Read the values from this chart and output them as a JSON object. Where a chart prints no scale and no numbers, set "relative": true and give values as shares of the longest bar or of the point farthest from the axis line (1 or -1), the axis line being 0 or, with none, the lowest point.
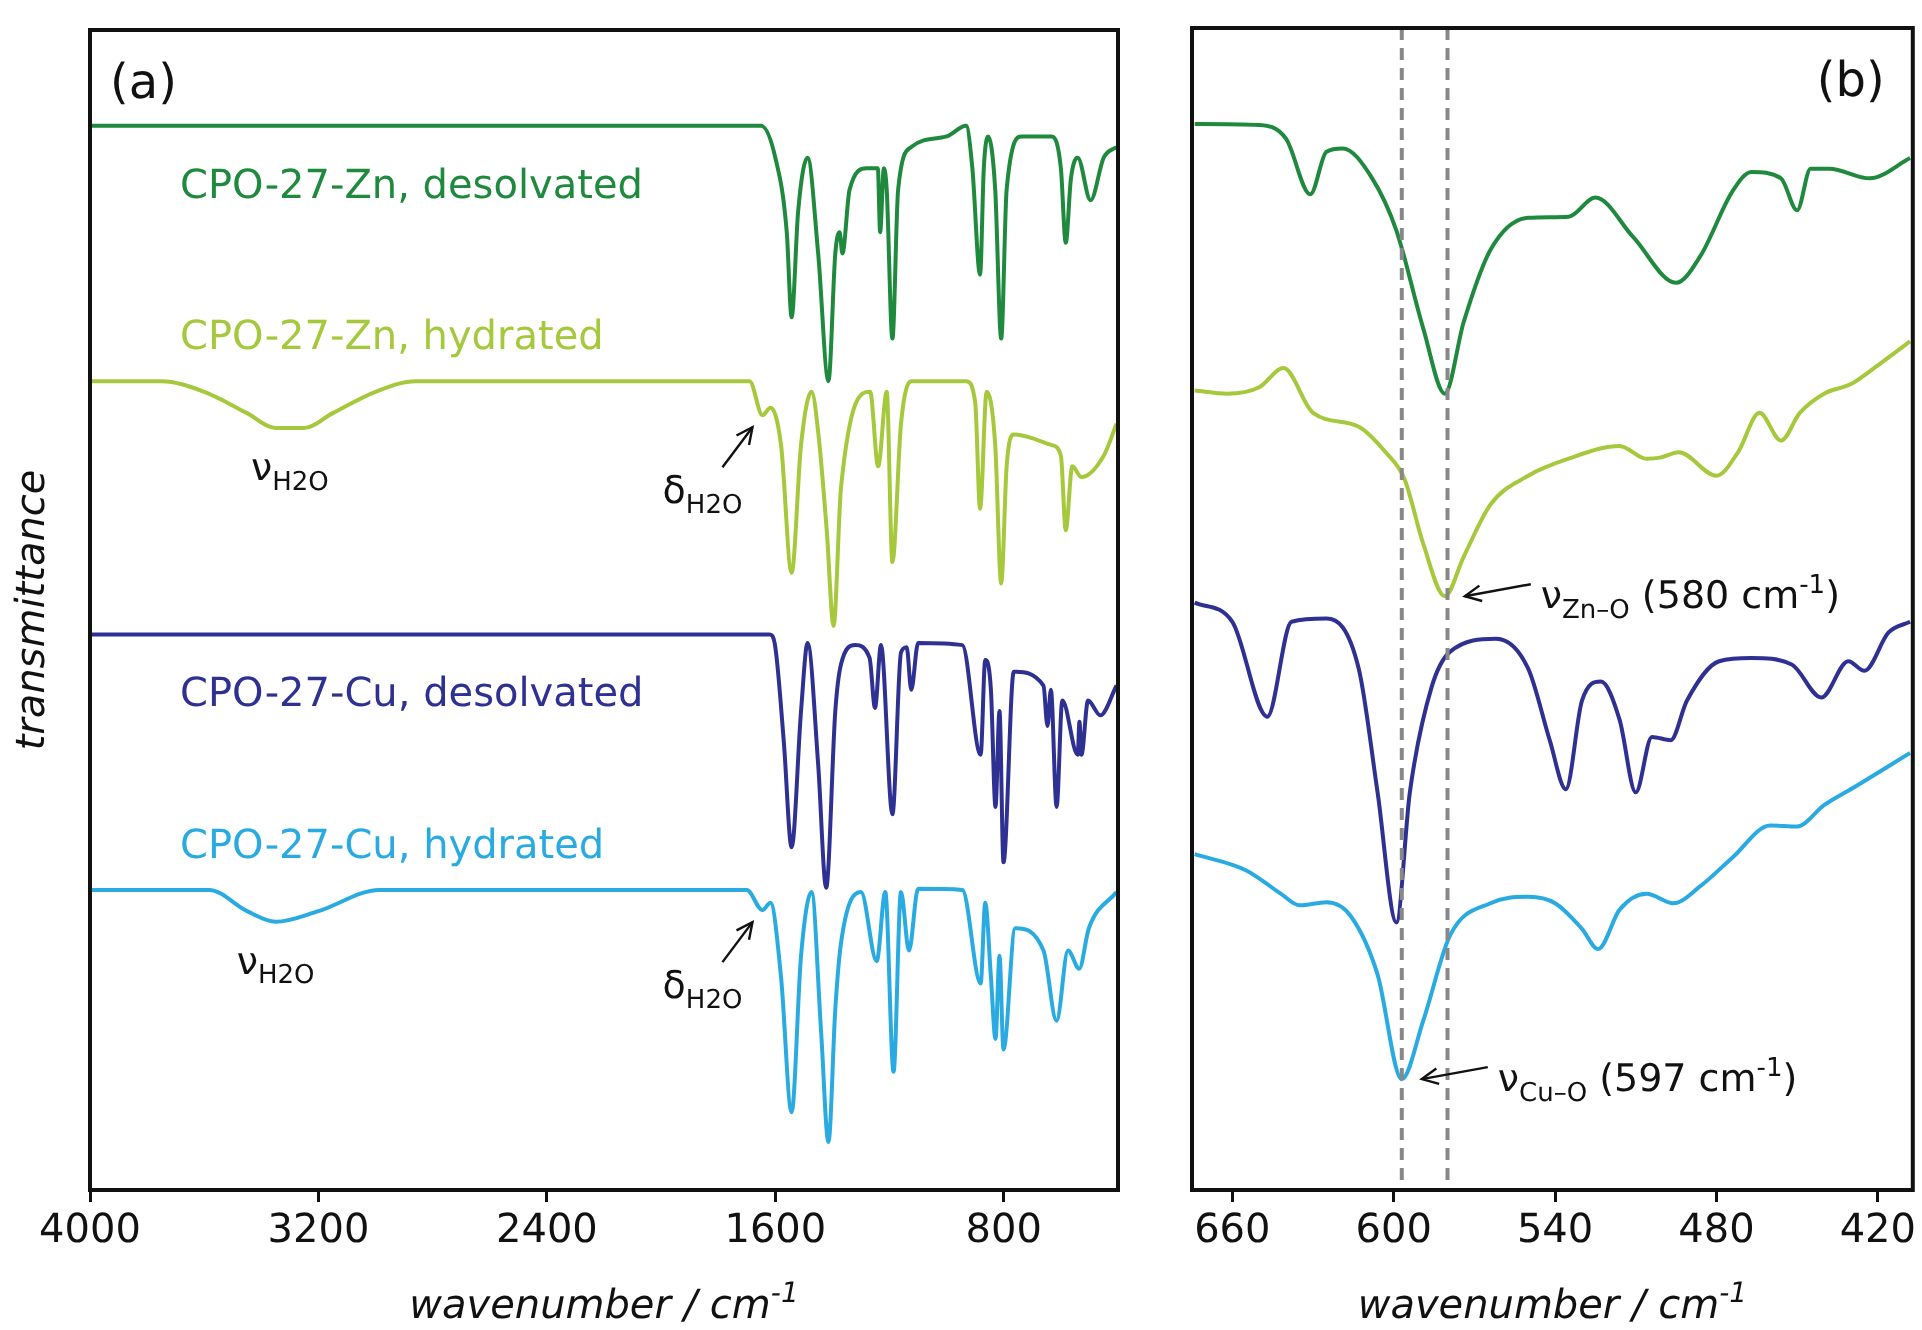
{
  "chart_data": [
    {
      "type": "line",
      "relative": true,
      "tick_labels": "x",
      "xlabel": "wavenumber / cm$^{-1}$",
      "ylabel": "transmittance",
      "xlim": [
        4000,
        400
      ],
      "xticks": [
        4000,
        3200,
        2400,
        1600,
        800
      ],
      "annotations": [
        "(a)",
        {
          "text": "ν$_{H2O}$",
          "x": 3300,
          "y": 0.716
        },
        {
          "text": "δ$_{H2O}$",
          "x": 1645,
          "y": 0.728
        },
        {
          "text": "ν$_{H2O}$",
          "x": 3350,
          "y": 0.252
        },
        {
          "text": "δ$_{H2O}$",
          "x": 1645,
          "y": 0.263
        }
      ],
      "series": [
        {
          "name": "CPO-27-Zn, desolvated",
          "color": "#1f8a3e",
          "x": [
            4000,
            1650,
            1600,
            1560,
            1543,
            1520,
            1487,
            1450,
            1414,
            1390,
            1375,
            1365,
            1340,
            1280,
            1241,
            1233,
            1220,
            1210,
            1190,
            1170,
            1124,
            1000,
            932,
            910,
            883,
            870,
            855,
            830,
            809,
            790,
            737,
            632,
            600,
            583,
            565,
            541,
            496,
            450,
            405
          ],
          "values": [
            1,
            1,
            0.97,
            0.9,
            0.82,
            0.92,
            0.97,
            0.88,
            0.76,
            0.88,
            0.9,
            0.88,
            0.94,
            0.96,
            0.96,
            0.9,
            0.96,
            0.94,
            0.8,
            0.94,
            0.98,
            0.99,
            1,
            0.96,
            0.86,
            0.96,
            0.99,
            0.94,
            0.8,
            0.94,
            0.99,
            0.99,
            0.96,
            0.89,
            0.95,
            0.97,
            0.93,
            0.97,
            0.98
          ]
        },
        {
          "name": "CPO-27-Zn, hydrated",
          "color": "#a6c83c",
          "x": [
            4000,
            3750,
            3600,
            3450,
            3350,
            3250,
            3150,
            3000,
            2860,
            1690,
            1645,
            1617,
            1580,
            1543,
            1510,
            1473,
            1449,
            1420,
            1396,
            1370,
            1268,
            1240,
            1210,
            1190,
            1160,
            1124,
            932,
            900,
            883,
            860,
            830,
            809,
            790,
            765,
            632,
            600,
            583,
            560,
            528,
            450,
            405
          ],
          "values": [
            0.76,
            0.76,
            0.75,
            0.73,
            0.716,
            0.716,
            0.73,
            0.75,
            0.76,
            0.76,
            0.728,
            0.735,
            0.7,
            0.58,
            0.7,
            0.75,
            0.71,
            0.62,
            0.53,
            0.66,
            0.75,
            0.68,
            0.75,
            0.59,
            0.72,
            0.76,
            0.76,
            0.74,
            0.64,
            0.75,
            0.7,
            0.57,
            0.68,
            0.71,
            0.7,
            0.69,
            0.62,
            0.68,
            0.67,
            0.69,
            0.72
          ]
        },
        {
          "name": "CPO-27-Cu, desolvated",
          "color": "#2e3192",
          "x": [
            4000,
            1620,
            1600,
            1570,
            1543,
            1510,
            1487,
            1450,
            1422,
            1390,
            1370,
            1320,
            1270,
            1251,
            1230,
            1190,
            1160,
            1140,
            1124,
            1100,
            945,
            881,
            865,
            845,
            829,
            815,
            801,
            765,
            661,
            647,
            635,
            615,
            595,
            541,
            535,
            528,
            505,
            462,
            405
          ],
          "values": [
            0.522,
            0.522,
            0.51,
            0.42,
            0.322,
            0.45,
            0.514,
            0.4,
            0.284,
            0.45,
            0.494,
            0.512,
            0.5,
            0.453,
            0.512,
            0.353,
            0.505,
            0.51,
            0.47,
            0.514,
            0.512,
            0.409,
            0.498,
            0.47,
            0.36,
            0.45,
            0.308,
            0.487,
            0.474,
            0.436,
            0.47,
            0.36,
            0.46,
            0.409,
            0.44,
            0.409,
            0.46,
            0.446,
            0.474
          ]
        },
        {
          "name": "CPO-27-Cu, hydrated",
          "color": "#29abe2",
          "x": [
            4000,
            3583,
            3450,
            3350,
            3200,
            2987,
            1700,
            1645,
            1617,
            1580,
            1543,
            1510,
            1473,
            1440,
            1414,
            1390,
            1370,
            1300,
            1245,
            1215,
            1186,
            1160,
            1132,
            1100,
            945,
            881,
            865,
            845,
            829,
            815,
            801,
            760,
            661,
            615,
            575,
            536,
            502,
            405
          ],
          "values": [
            0.282,
            0.282,
            0.262,
            0.252,
            0.262,
            0.282,
            0.282,
            0.263,
            0.27,
            0.2,
            0.073,
            0.22,
            0.28,
            0.15,
            0.045,
            0.17,
            0.232,
            0.28,
            0.215,
            0.28,
            0.111,
            0.28,
            0.225,
            0.283,
            0.282,
            0.194,
            0.27,
            0.2,
            0.142,
            0.22,
            0.132,
            0.246,
            0.225,
            0.159,
            0.225,
            0.208,
            0.246,
            0.28
          ]
        }
      ]
    },
    {
      "type": "line",
      "relative": true,
      "tick_labels": "x",
      "xlabel": "wavenumber / cm$^{-1}$",
      "xlim": [
        675,
        407
      ],
      "xticks": [
        660,
        600,
        540,
        480,
        420
      ],
      "ref_lines": [
        {
          "axis": "x",
          "value": 597,
          "color": "#888888",
          "line_style": "dashed"
        },
        {
          "axis": "x",
          "value": 580,
          "color": "#888888",
          "line_style": "dashed"
        }
      ],
      "annotations": [
        "(b)",
        {
          "text": "ν$_{Zn–O}$ (580 cm$^{-1}$)",
          "x": 581,
          "y": 0.557
        },
        {
          "text": "ν$_{Cu–O}$ (597 cm$^{-1}$)",
          "x": 597,
          "y": 0.104
        }
      ],
      "series": [
        {
          "color": "#1f8a3e",
          "x": [
            674,
            650,
            640,
            631,
            625,
            619,
            608,
            599,
            589,
            581,
            574,
            564,
            550,
            535,
            525,
            511,
            495,
            486,
            474,
            467,
            456,
            450,
            445,
            438,
            423,
            408
          ],
          "values": [
            1,
            0.999,
            0.986,
            0.934,
            0.974,
            0.977,
            0.949,
            0.9,
            0.808,
            0.747,
            0.814,
            0.882,
            0.912,
            0.913,
            0.931,
            0.894,
            0.851,
            0.876,
            0.937,
            0.955,
            0.949,
            0.919,
            0.958,
            0.958,
            0.949,
            0.968
          ]
        },
        {
          "color": "#a6c83c",
          "x": [
            674,
            662,
            650,
            641,
            630,
            613,
            603,
            596,
            589,
            581,
            574,
            564,
            550,
            535,
            516,
            506,
            501,
            494,
            480,
            472,
            464,
            456,
            449,
            440,
            430,
            423,
            408
          ],
          "values": [
            0.75,
            0.747,
            0.753,
            0.771,
            0.729,
            0.716,
            0.692,
            0.667,
            0.606,
            0.557,
            0.594,
            0.643,
            0.67,
            0.686,
            0.698,
            0.686,
            0.687,
            0.692,
            0.67,
            0.692,
            0.729,
            0.703,
            0.729,
            0.747,
            0.756,
            0.768,
            0.796
          ]
        },
        {
          "color": "#2e3192",
          "x": [
            674,
            660,
            647,
            638,
            625,
            613,
            606,
            599,
            594,
            586,
            579,
            562,
            550,
            542,
            536,
            530,
            523,
            516,
            510,
            504,
            497,
            491,
            479,
            467,
            452,
            441,
            431,
            425,
            416,
            408
          ],
          "values": [
            0.551,
            0.533,
            0.444,
            0.533,
            0.536,
            0.489,
            0.373,
            0.251,
            0.373,
            0.471,
            0.505,
            0.517,
            0.489,
            0.422,
            0.376,
            0.459,
            0.477,
            0.441,
            0.373,
            0.425,
            0.422,
            0.459,
            0.496,
            0.499,
            0.493,
            0.462,
            0.496,
            0.487,
            0.523,
            0.533
          ]
        },
        {
          "color": "#29abe2",
          "x": [
            674,
            655,
            642,
            635,
            625,
            616,
            606,
            597,
            589,
            579,
            564,
            550,
            540,
            530,
            524,
            516,
            506,
            496,
            486,
            474,
            460,
            450,
            440,
            428,
            408
          ],
          "values": [
            0.315,
            0.3,
            0.278,
            0.267,
            0.27,
            0.257,
            0.202,
            0.104,
            0.159,
            0.239,
            0.269,
            0.275,
            0.269,
            0.245,
            0.226,
            0.263,
            0.278,
            0.269,
            0.285,
            0.312,
            0.342,
            0.341,
            0.361,
            0.379,
            0.41
          ]
        }
      ]
    }
  ]
}
